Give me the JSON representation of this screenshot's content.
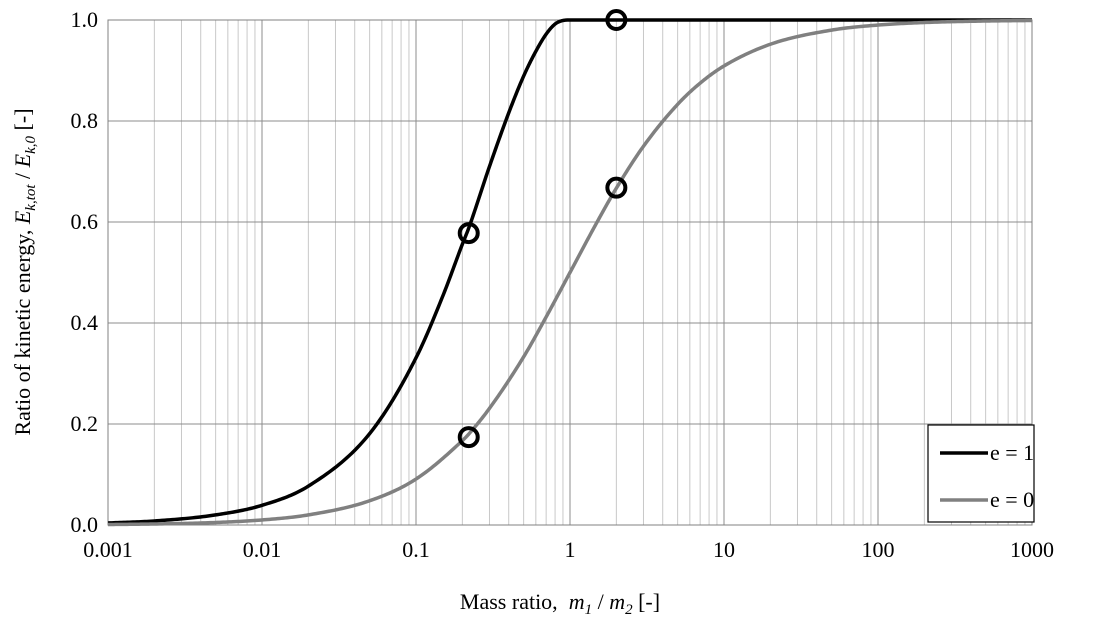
{
  "chart_data": {
    "type": "line",
    "xlabel": {
      "prefix": "Mass ratio,  ",
      "m1_base": "m",
      "m1_sub": "1",
      "sep": " / ",
      "m2_base": "m",
      "m2_sub": "2",
      "suffix": " [-]"
    },
    "ylabel": {
      "prefix": "Ratio of kinetic energy, ",
      "e1_base": "E",
      "e1_sub": "k,tot",
      "sep": " / ",
      "e2_base": "E",
      "e2_sub": "k,0",
      "suffix": " [-]"
    },
    "x_scale": "log",
    "xlim": [
      0.001,
      1000
    ],
    "ylim": [
      0,
      1
    ],
    "x_ticks": [
      0.001,
      0.01,
      0.1,
      1,
      10,
      100,
      1000
    ],
    "x_tick_labels": [
      "0.001",
      "0.01",
      "0.1",
      "1",
      "10",
      "100",
      "1000"
    ],
    "y_ticks": [
      0,
      0.2,
      0.4,
      0.6,
      0.8,
      1.0
    ],
    "y_tick_labels": [
      "0.0",
      "0.2",
      "0.4",
      "0.6",
      "0.8",
      "1.0"
    ],
    "grid": true,
    "legend_position": "bottom-right",
    "series": [
      {
        "name": "e = 1",
        "color": "#000000",
        "x": [
          0.001,
          0.002,
          0.005,
          0.01,
          0.02,
          0.05,
          0.1,
          0.15,
          0.2,
          0.22,
          0.3,
          0.4,
          0.5,
          0.6,
          0.7,
          0.8,
          0.9,
          1,
          2,
          10,
          100,
          1000
        ],
        "values": [
          0.004,
          0.008,
          0.02,
          0.039,
          0.077,
          0.181,
          0.331,
          0.455,
          0.556,
          0.588,
          0.71,
          0.816,
          0.889,
          0.938,
          0.972,
          0.992,
          0.999,
          1,
          1,
          1,
          1,
          1
        ]
      },
      {
        "name": "e = 0",
        "color": "#808080",
        "x": [
          0.001,
          0.002,
          0.005,
          0.01,
          0.02,
          0.05,
          0.1,
          0.2,
          0.22,
          0.3,
          0.5,
          0.7,
          1,
          1.5,
          2,
          3,
          5,
          7,
          10,
          20,
          50,
          100,
          200,
          500,
          1000
        ],
        "values": [
          0.001,
          0.002,
          0.005,
          0.01,
          0.02,
          0.048,
          0.091,
          0.167,
          0.18,
          0.231,
          0.333,
          0.412,
          0.5,
          0.6,
          0.667,
          0.75,
          0.833,
          0.875,
          0.909,
          0.952,
          0.98,
          0.99,
          0.995,
          0.998,
          0.999
        ]
      }
    ],
    "markers": [
      {
        "x": 0.22,
        "y": 0.578
      },
      {
        "x": 0.22,
        "y": 0.174
      },
      {
        "x": 2,
        "y": 1.0
      },
      {
        "x": 2,
        "y": 0.668
      }
    ]
  }
}
